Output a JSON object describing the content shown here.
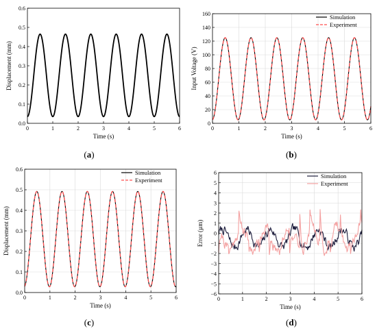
{
  "chart_data": [
    {
      "panel": "a",
      "type": "line",
      "xlabel": "Time (s)",
      "ylabel": "Displacement (mm)",
      "xlim": [
        0,
        6
      ],
      "ylim": [
        0,
        0.6
      ],
      "xticks": [
        "0",
        "1",
        "2",
        "3",
        "4",
        "5",
        "6"
      ],
      "yticks": [
        "0.0",
        "0.1",
        "0.2",
        "0.3",
        "0.4",
        "0.5",
        "0.6"
      ],
      "grid": false,
      "legend": "none",
      "series": [
        {
          "color": "#000000",
          "style": "solid",
          "wave": {
            "mid": 0.25,
            "amp": 0.215,
            "period": 1.0,
            "phase_peak": 0.5
          }
        }
      ]
    },
    {
      "panel": "b",
      "type": "line",
      "xlabel": "Time (s)",
      "ylabel": "Input Voltage (V)",
      "xlim": [
        0,
        6
      ],
      "ylim": [
        0,
        160
      ],
      "xticks": [
        "0",
        "1",
        "2",
        "3",
        "4",
        "5",
        "6"
      ],
      "yticks": [
        "0",
        "20",
        "40",
        "60",
        "80",
        "100",
        "120",
        "140",
        "160"
      ],
      "grid": true,
      "legend": "top-right",
      "series": [
        {
          "name": "Simulation",
          "color": "#000000",
          "style": "solid",
          "wave": {
            "mid": 65,
            "amp": 60,
            "period": 0.98,
            "phase_peak": 0.48
          }
        },
        {
          "name": "Experiment",
          "color": "#ff4d4d",
          "style": "dashed",
          "wave": {
            "mid": 65,
            "amp": 60,
            "period": 0.98,
            "phase_peak": 0.48
          }
        }
      ]
    },
    {
      "panel": "c",
      "type": "line",
      "xlabel": "Time (s)",
      "ylabel": "Displacement (mm)",
      "xlim": [
        0,
        6
      ],
      "ylim": [
        0,
        0.6
      ],
      "xticks": [
        "0",
        "1",
        "2",
        "3",
        "4",
        "5",
        "6"
      ],
      "yticks": [
        "0.0",
        "0.1",
        "0.2",
        "0.3",
        "0.4",
        "0.5",
        "0.6"
      ],
      "grid": true,
      "legend": "top-right",
      "series": [
        {
          "name": "Simulation",
          "color": "#000000",
          "style": "solid",
          "wave": {
            "mid": 0.26,
            "amp": 0.232,
            "period": 1.0,
            "phase_peak": 0.48
          }
        },
        {
          "name": "Experiment",
          "color": "#ff4d4d",
          "style": "dashed",
          "wave": {
            "mid": 0.26,
            "amp": 0.232,
            "period": 1.0,
            "phase_peak": 0.48
          }
        }
      ]
    },
    {
      "panel": "d",
      "type": "line",
      "xlabel": "Time (s)",
      "ylabel": "Error (µm)",
      "xlim": [
        0,
        6
      ],
      "ylim": [
        -6,
        6
      ],
      "xticks": [
        "0",
        "1",
        "2",
        "3",
        "4",
        "5",
        "6"
      ],
      "yticks": [
        "−6",
        "−5",
        "−4",
        "−3",
        "−2",
        "−1",
        "0",
        "1",
        "2",
        "3",
        "4",
        "5",
        "6"
      ],
      "grid": true,
      "legend": "top-right",
      "series": [
        {
          "name": "Simulation",
          "color": "#1a1a3a",
          "style": "solid",
          "noise": {
            "amp": 1.5,
            "seed": 7
          }
        },
        {
          "name": "Experiment",
          "color": "#f4a0a0",
          "style": "solid",
          "noise": {
            "amp": 1.9,
            "seed": 21
          }
        }
      ]
    }
  ],
  "panel_labels": [
    "(a)",
    "(b)",
    "(c)",
    "(d)"
  ]
}
